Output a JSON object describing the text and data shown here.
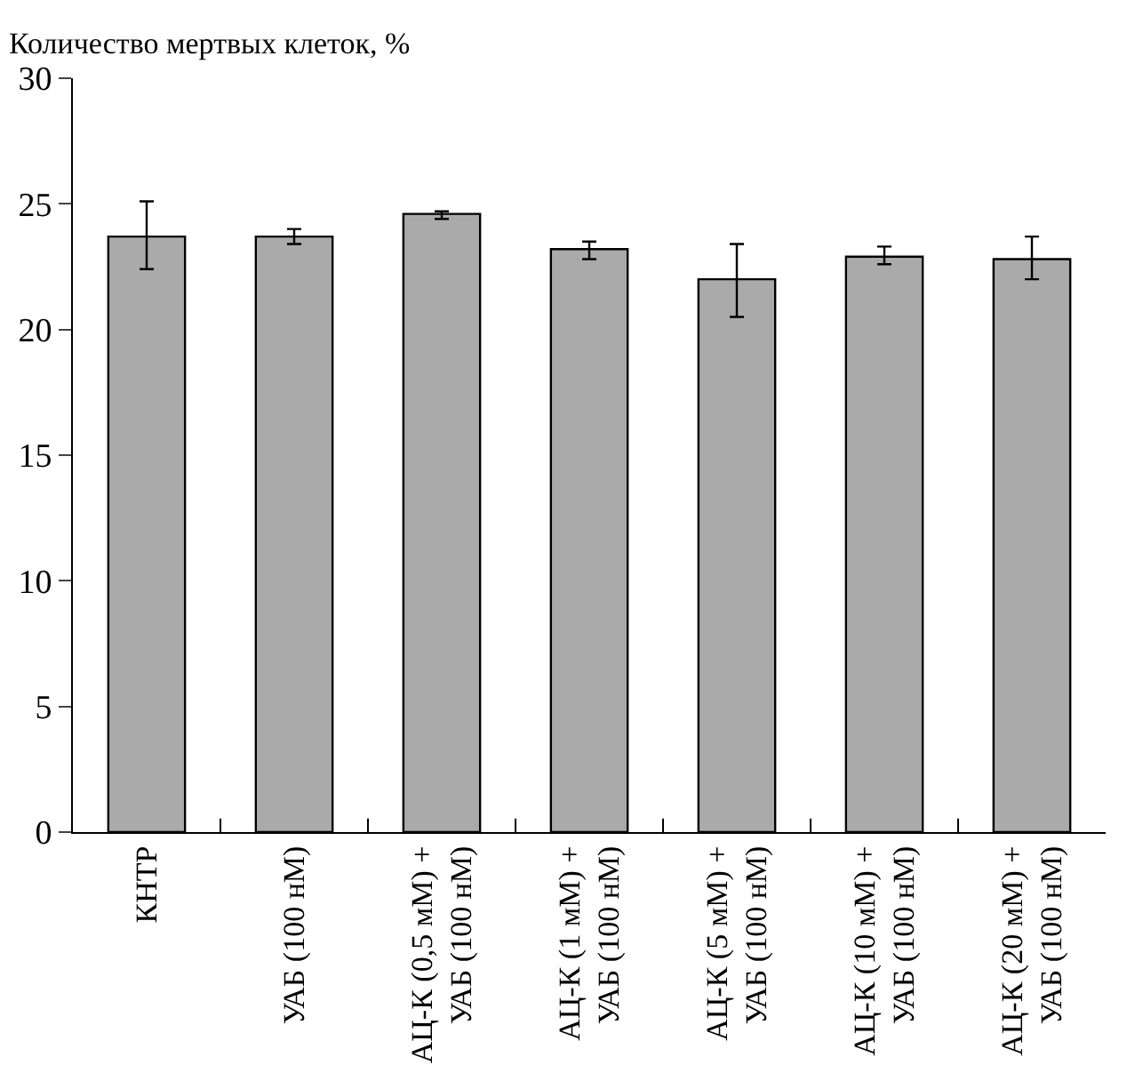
{
  "chart_data": {
    "type": "bar",
    "ylabel": "Количество мертвых клеток, %",
    "categories": [
      "КНТР",
      "УАБ (100 нМ)",
      "АЦ-К (0,5 мМ) +\nУАБ (100 нМ)",
      "АЦ-К (1 мМ) +\nУАБ (100 нМ)",
      "АЦ-К (5 мМ) +\nУАБ (100 нМ)",
      "АЦ-К (10 мМ) +\nУАБ (100 нМ)",
      "АЦ-К (20 мМ) +\nУАБ (100 нМ)"
    ],
    "values": [
      23.7,
      23.7,
      24.6,
      23.2,
      22.0,
      22.9,
      22.8
    ],
    "errors": [
      [
        22.4,
        25.1
      ],
      [
        23.4,
        24.0
      ],
      [
        24.4,
        24.7
      ],
      [
        22.8,
        23.5
      ],
      [
        20.5,
        23.4
      ],
      [
        22.6,
        23.3
      ],
      [
        22.0,
        23.7
      ]
    ],
    "color": "#aaaaaa",
    "ylim": [
      0,
      30
    ],
    "yticks": [
      0,
      5,
      10,
      15,
      20,
      25,
      30
    ]
  }
}
